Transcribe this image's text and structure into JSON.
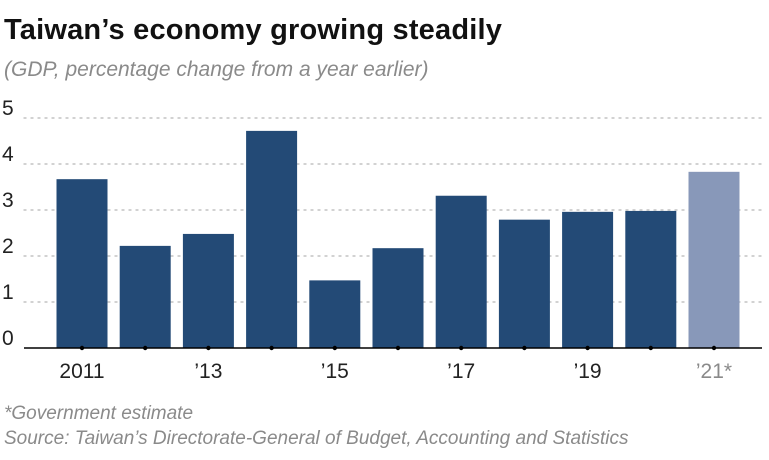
{
  "chart_data": {
    "type": "bar",
    "title": "Taiwan’s economy growing steadily",
    "subtitle": "(GDP, percentage change from a year earlier)",
    "categories": [
      "2011",
      "2012",
      "2013",
      "2014",
      "2015",
      "2016",
      "2017",
      "2018",
      "2019",
      "2020",
      "2021"
    ],
    "values": [
      3.67,
      2.22,
      2.48,
      4.72,
      1.47,
      2.17,
      3.31,
      2.79,
      2.96,
      2.98,
      3.83
    ],
    "estimated": [
      false,
      false,
      false,
      false,
      false,
      false,
      false,
      false,
      false,
      false,
      true
    ],
    "x_tick_labels": [
      {
        "index": 0,
        "label": "2011"
      },
      {
        "index": 2,
        "label": "’13"
      },
      {
        "index": 4,
        "label": "’15"
      },
      {
        "index": 6,
        "label": "’17"
      },
      {
        "index": 8,
        "label": "’19"
      },
      {
        "index": 10,
        "label": "’21*"
      }
    ],
    "yticks": [
      0,
      1,
      2,
      3,
      4,
      5
    ],
    "ylim": [
      0,
      5
    ],
    "xlabel": "",
    "ylabel": "",
    "grid": true,
    "colors": {
      "bar": "#234a76",
      "estimate": "#8898b9",
      "grid": "#b8b8b8",
      "axis": "#000000"
    }
  },
  "footnotes": {
    "estimate_note": "*Government estimate",
    "source": "Source: Taiwan’s Directorate-General of Budget, Accounting and Statistics"
  }
}
